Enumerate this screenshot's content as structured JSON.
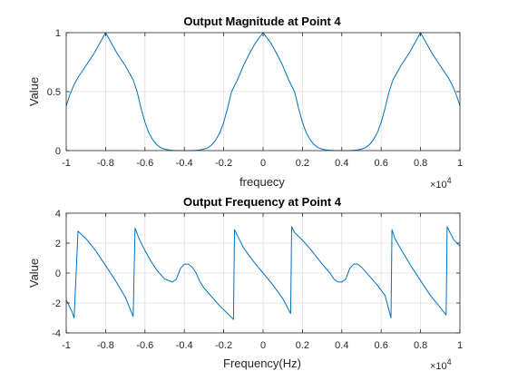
{
  "chart_data": [
    {
      "type": "line",
      "title": "Output Magnitude at Point 4",
      "xlabel": "frequecy",
      "ylabel": "Value",
      "x_exponent_base": "×10",
      "x_exponent_power": "4",
      "xlim": [
        -10000,
        10000
      ],
      "ylim": [
        0,
        1
      ],
      "xticks": [
        -10000,
        -8000,
        -6000,
        -4000,
        -2000,
        0,
        2000,
        4000,
        6000,
        8000,
        10000
      ],
      "xticklabels": [
        "-1",
        "-0.8",
        "-0.6",
        "-0.4",
        "-0.2",
        "0",
        "0.2",
        "0.4",
        "0.6",
        "0.8",
        "1"
      ],
      "yticks": [
        0,
        0.5,
        1
      ],
      "yticklabels": [
        "0",
        "0.5",
        "1"
      ],
      "grid": true,
      "line_color": "#0072BD",
      "series": [
        {
          "x": [
            -10000,
            -9800,
            -9600,
            -9400,
            -9000,
            -8600,
            -8300,
            -8000,
            -7700,
            -7400,
            -7000,
            -6600,
            -6400,
            -6200,
            -6000,
            -5800,
            -5600,
            -5400,
            -5200,
            -5000,
            -4800,
            -4600,
            -4400,
            -4200,
            -4000,
            -3800,
            -3600,
            -3400,
            -3200,
            -3000,
            -2800,
            -2600,
            -2400,
            -2200,
            -2000,
            -1800,
            -1600,
            -1300,
            -1000,
            -700,
            -400,
            0,
            400,
            700,
            1000,
            1300,
            1600,
            1800,
            2000,
            2200,
            2400,
            2600,
            2800,
            3000,
            3200,
            3400,
            3600,
            3800,
            4000,
            4200,
            4400,
            4600,
            4800,
            5000,
            5200,
            5400,
            5600,
            5800,
            6000,
            6200,
            6400,
            6600,
            7000,
            7400,
            7700,
            8000,
            8300,
            8600,
            9000,
            9400,
            9600,
            9800,
            10000
          ],
          "y": [
            0.38,
            0.48,
            0.56,
            0.62,
            0.72,
            0.82,
            0.91,
            1.0,
            0.91,
            0.82,
            0.72,
            0.6,
            0.5,
            0.36,
            0.24,
            0.15,
            0.09,
            0.05,
            0.025,
            0.012,
            0.005,
            0.002,
            0.001,
            0.0,
            0.0,
            0.0,
            0.001,
            0.002,
            0.005,
            0.012,
            0.025,
            0.05,
            0.09,
            0.15,
            0.24,
            0.36,
            0.5,
            0.6,
            0.72,
            0.82,
            0.91,
            1.0,
            0.91,
            0.82,
            0.72,
            0.6,
            0.5,
            0.36,
            0.24,
            0.15,
            0.09,
            0.05,
            0.025,
            0.012,
            0.005,
            0.002,
            0.001,
            0.0,
            0.0,
            0.0,
            0.001,
            0.002,
            0.005,
            0.012,
            0.025,
            0.05,
            0.09,
            0.15,
            0.24,
            0.36,
            0.5,
            0.6,
            0.72,
            0.82,
            0.91,
            1.0,
            0.91,
            0.82,
            0.72,
            0.62,
            0.56,
            0.48,
            0.38
          ]
        }
      ]
    },
    {
      "type": "line",
      "title": "Output Frequency at Point 4",
      "xlabel": "Frequency(Hz)",
      "ylabel": "Value",
      "x_exponent_base": "×10",
      "x_exponent_power": "4",
      "xlim": [
        -10000,
        10000
      ],
      "ylim": [
        -4,
        4
      ],
      "xticks": [
        -10000,
        -8000,
        -6000,
        -4000,
        -2000,
        0,
        2000,
        4000,
        6000,
        8000,
        10000
      ],
      "xticklabels": [
        "-1",
        "-0.8",
        "-0.6",
        "-0.4",
        "-0.2",
        "0",
        "0.2",
        "0.4",
        "0.6",
        "0.8",
        "1"
      ],
      "yticks": [
        -4,
        -2,
        0,
        2,
        4
      ],
      "yticklabels": [
        "-4",
        "-2",
        "0",
        "2",
        "4"
      ],
      "grid": true,
      "line_color": "#0072BD",
      "series": [
        {
          "x": [
            -10000,
            -9700,
            -9600,
            -9400,
            -9000,
            -8500,
            -8000,
            -7500,
            -7000,
            -6600,
            -6500,
            -6300,
            -6000,
            -5700,
            -5400,
            -5000,
            -4600,
            -4400,
            -4200,
            -4000,
            -3800,
            -3600,
            -3400,
            -3200,
            -3000,
            -2600,
            -2200,
            -1800,
            -1500,
            -1450,
            -1300,
            -1000,
            -500,
            0,
            500,
            1000,
            1400,
            1450,
            1600,
            2000,
            2400,
            3000,
            3400,
            3600,
            3800,
            4000,
            4200,
            4400,
            4600,
            4800,
            5000,
            5400,
            5800,
            6200,
            6500,
            6550,
            6700,
            7000,
            7500,
            8000,
            8500,
            9000,
            9300,
            9350,
            9500,
            9700,
            10000
          ],
          "y": [
            -1.8,
            -2.6,
            -3.0,
            2.8,
            2.3,
            1.5,
            0.5,
            -0.5,
            -1.6,
            -2.9,
            3.0,
            2.3,
            1.5,
            0.8,
            0.2,
            -0.4,
            -0.6,
            -0.4,
            0.3,
            0.6,
            0.6,
            0.4,
            0.0,
            -0.6,
            -1.0,
            -1.6,
            -2.2,
            -2.7,
            -3.1,
            2.9,
            2.5,
            1.7,
            0.8,
            0.0,
            -0.8,
            -1.7,
            -2.7,
            3.1,
            2.7,
            2.2,
            1.6,
            0.6,
            0.0,
            -0.4,
            -0.6,
            -0.6,
            -0.4,
            0.3,
            0.6,
            0.6,
            0.4,
            -0.2,
            -0.8,
            -1.5,
            -3.0,
            2.9,
            2.3,
            1.6,
            0.5,
            -0.5,
            -1.5,
            -2.3,
            -2.8,
            3.1,
            2.7,
            2.2,
            1.8
          ]
        }
      ]
    }
  ]
}
